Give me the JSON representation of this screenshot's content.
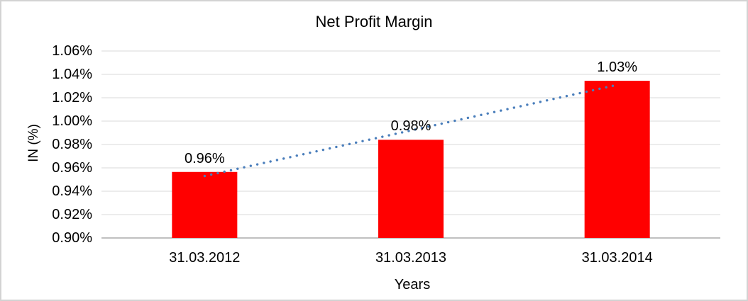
{
  "window": {
    "background": "#ffffff",
    "border_color": "#d3d3d3"
  },
  "chart_data": {
    "type": "bar",
    "title": "Net Profit Margin",
    "xlabel": "Years",
    "ylabel": "IN (%)",
    "categories": [
      "31.03.2012",
      "31.03.2013",
      "31.03.2014"
    ],
    "values": [
      0.9565,
      0.984,
      1.0345
    ],
    "data_labels": [
      "0.96%",
      "0.98%",
      "1.03%"
    ],
    "y_ticks": [
      "1.06%",
      "1.04%",
      "1.02%",
      "1.00%",
      "0.98%",
      "0.96%",
      "0.94%",
      "0.92%",
      "0.90%"
    ],
    "ylim": [
      0.9,
      1.06
    ],
    "y_step": 0.02,
    "grid": true,
    "legend_position": "none",
    "bar_color": "#ff0000",
    "gridline_color": "#d9d9d9",
    "axis_line_color": "#c0c0c0",
    "text_color": "#000000",
    "trendline": {
      "type": "linear",
      "style": "dotted",
      "color": "#4a7ebb",
      "start_value": 0.953,
      "end_value": 1.031
    }
  }
}
